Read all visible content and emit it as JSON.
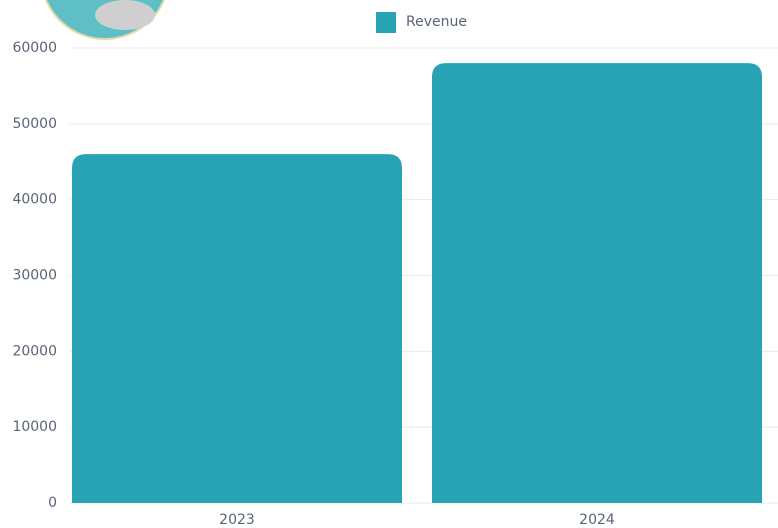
{
  "chart_data": {
    "type": "bar",
    "categories": [
      "2023",
      "2024"
    ],
    "series": [
      {
        "name": "Revenue",
        "color": "#27a3b4",
        "values": [
          46000,
          58000
        ]
      }
    ],
    "ylim": [
      0,
      60000
    ],
    "yticks": [
      0,
      10000,
      20000,
      30000,
      40000,
      50000,
      60000
    ],
    "grid": true
  }
}
